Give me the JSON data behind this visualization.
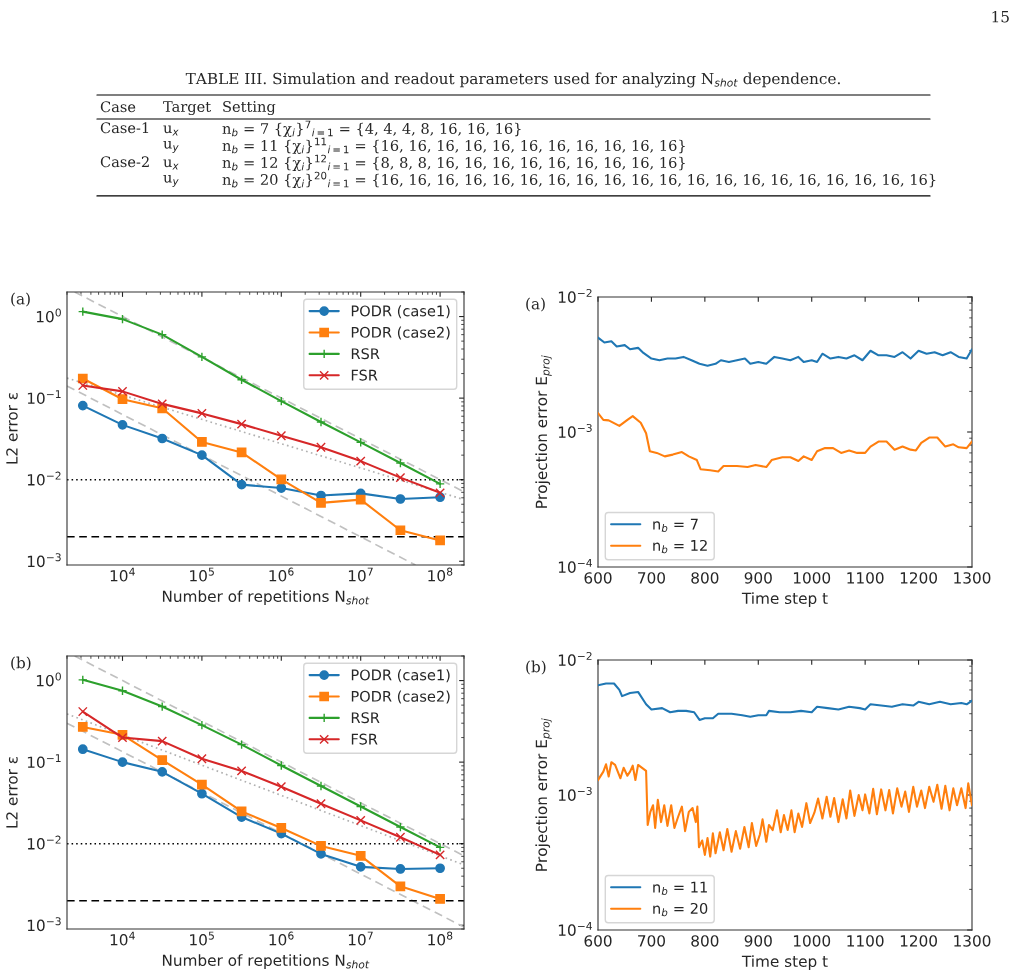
{
  "chart_data": [
    {
      "type": "other",
      "title": "TABLE III. Simulation and readout parameters used for analyzing N$_{shot}$ dependence.",
      "annotations": [
        "Case",
        "Target",
        "Setting",
        "Case-1",
        "u$_{x}$",
        "n$_{b}$ = 7 {χ$_{i}$}$^{7}$$_{i=1}$ = {4, 4, 4, 8, 16, 16, 16}",
        "u$_{y}$",
        "n$_{b}$ = 11 {χ$_{i}$}$^{11}$$_{i=1}$ = {16, 16, 16, 16, 16, 16, 16, 16, 16, 16, 16}",
        "Case-2",
        "u$_{x}$",
        "n$_{b}$ = 12 {χ$_{i}$}$^{12}$$_{i=1}$ = {8, 8, 8, 16, 16, 16, 16, 16, 16, 16, 16, 16}",
        "u$_{y}$",
        "n$_{b}$ = 20 {χ$_{i}$}$^{20}$$_{i=1}$ = {16, 16, 16, 16, 16, 16, 16, 16, 16, 16, 16, 16, 16, 16, 16, 16, 16, 16, 16, 16}",
        "15"
      ]
    },
    {
      "type": "line",
      "annotations": [
        "(a)"
      ],
      "xlabel": "Number of repetitions N$_{shot}$",
      "ylabel": "L2 error ε",
      "log": "xy",
      "legend": "top right",
      "xlim": [
        2000,
        200000000
      ],
      "ylim": [
        0.0009,
        2
      ],
      "xticks": [
        {
          "value": 10000,
          "label": "10$^{4}$"
        },
        {
          "value": 100000,
          "label": "10$^{5}$"
        },
        {
          "value": 1000000,
          "label": "10$^{6}$"
        },
        {
          "value": 10000000,
          "label": "10$^{7}$"
        },
        {
          "value": 100000000,
          "label": "10$^{8}$"
        }
      ],
      "yticks": [
        {
          "value": 0.001,
          "label": "10$^{−3}$"
        },
        {
          "value": 0.01,
          "label": "10$^{−2}$"
        },
        {
          "value": 0.1,
          "label": "10$^{−1}$"
        },
        {
          "value": 1,
          "label": "10$^{0}$"
        }
      ],
      "x": [
        3162,
        10000,
        31623,
        100000,
        316228,
        1000000,
        3162278,
        10000000,
        31622777,
        100000000
      ],
      "ref_lines": [
        {
          "axis": "y",
          "value": 0.01,
          "color": "#000000",
          "line_style": "dotted"
        },
        {
          "axis": "y",
          "value": 0.002,
          "color": "#000000",
          "line_style": "dashed"
        }
      ],
      "series": [
        {
          "name": "PODR (case1)",
          "color": "#1f77b4",
          "marker": "circle",
          "values": [
            0.081,
            0.047,
            0.032,
            0.02,
            0.0087,
            0.0079,
            0.0064,
            0.0068,
            0.0058,
            0.0061
          ]
        },
        {
          "name": "PODR (case2)",
          "color": "#ff7f0e",
          "marker": "square",
          "values": [
            0.174,
            0.097,
            0.075,
            0.029,
            0.0216,
            0.0101,
            0.0052,
            0.0057,
            0.0024,
            0.0018
          ]
        },
        {
          "name": "RSR",
          "color": "#2ca02c",
          "marker": "plus",
          "values": [
            1.15,
            0.93,
            0.6,
            0.32,
            0.168,
            0.092,
            0.051,
            0.0287,
            0.016,
            0.0089
          ]
        },
        {
          "name": "FSR",
          "color": "#d62728",
          "marker": "cross",
          "values": [
            0.143,
            0.121,
            0.085,
            0.065,
            0.048,
            0.0346,
            0.025,
            0.0169,
            0.0106,
            0.0069
          ]
        },
        {
          "color": "#c0c0c0",
          "line_style": "dashed",
          "x": [
            2500,
            200000000
          ],
          "values": [
            2,
            0.0071
          ]
        },
        {
          "color": "#c0c0c0",
          "line_style": "dashed",
          "x": [
            2000,
            49000000
          ],
          "values": [
            0.141,
            0.0009
          ]
        },
        {
          "color": "#b0b0b0",
          "line_style": "dotted",
          "x": [
            2000,
            200000000
          ],
          "values": [
            0.176,
            0.0057
          ]
        }
      ]
    },
    {
      "type": "line",
      "annotations": [
        "(a)"
      ],
      "xlabel": "Time step t",
      "ylabel": "Projection error E$_{proj}$",
      "log": "y",
      "legend": "bottom left",
      "xlim": [
        600,
        1300
      ],
      "ylim": [
        0.0001,
        0.01
      ],
      "xticks": [
        600,
        700,
        800,
        900,
        1000,
        1100,
        1200,
        1300
      ],
      "yticks": [
        {
          "value": 0.0001,
          "label": "10$^{−4}$"
        },
        {
          "value": 0.001,
          "label": "10$^{−3}$"
        },
        {
          "value": 0.01,
          "label": "10$^{−2}$"
        }
      ],
      "series": [
        {
          "name": "n$_{b}$ = 7",
          "color": "#1f77b4",
          "x": [
            600,
            612,
            625,
            635,
            650,
            660,
            675,
            685,
            700,
            715,
            730,
            745,
            760,
            775,
            790,
            805,
            820,
            830,
            845,
            860,
            875,
            885,
            900,
            915,
            930,
            945,
            960,
            975,
            985,
            1000,
            1010,
            1020,
            1035,
            1050,
            1065,
            1080,
            1095,
            1110,
            1125,
            1140,
            1155,
            1170,
            1185,
            1200,
            1215,
            1230,
            1245,
            1260,
            1275,
            1290,
            1300
          ],
          "values": [
            0.005,
            0.0046,
            0.0047,
            0.0043,
            0.0044,
            0.0041,
            0.0042,
            0.00385,
            0.0035,
            0.0034,
            0.0035,
            0.0035,
            0.0036,
            0.0034,
            0.0032,
            0.0031,
            0.0032,
            0.0034,
            0.0033,
            0.0034,
            0.0035,
            0.0032,
            0.0033,
            0.0032,
            0.0036,
            0.0035,
            0.0034,
            0.0036,
            0.0033,
            0.0034,
            0.0033,
            0.0038,
            0.0035,
            0.0036,
            0.0035,
            0.0037,
            0.0034,
            0.004,
            0.0037,
            0.0037,
            0.0036,
            0.0039,
            0.0035,
            0.004,
            0.0038,
            0.0039,
            0.0037,
            0.0039,
            0.0036,
            0.0035,
            0.0041
          ]
        },
        {
          "name": "n$_{b}$ = 12",
          "color": "#ff7f0e",
          "x": [
            600,
            610,
            620,
            640,
            655,
            665,
            680,
            690,
            697,
            710,
            725,
            740,
            757,
            770,
            785,
            792,
            810,
            825,
            835,
            860,
            880,
            895,
            915,
            925,
            945,
            960,
            975,
            985,
            1000,
            1010,
            1025,
            1040,
            1055,
            1070,
            1085,
            1100,
            1110,
            1125,
            1140,
            1155,
            1170,
            1185,
            1195,
            1205,
            1220,
            1235,
            1250,
            1265,
            1275,
            1290,
            1300
          ],
          "values": [
            0.00138,
            0.00123,
            0.00122,
            0.00111,
            0.00123,
            0.00131,
            0.00117,
            0.00098,
            0.00072,
            0.0007,
            0.00066,
            0.00068,
            0.00071,
            0.00066,
            0.00062,
            0.00053,
            0.00052,
            0.00051,
            0.00056,
            0.00056,
            0.00055,
            0.00057,
            0.00055,
            0.00062,
            0.00065,
            0.00065,
            0.00061,
            0.00066,
            0.00062,
            0.00072,
            0.00076,
            0.00076,
            0.0007,
            0.00073,
            0.0007,
            0.0007,
            0.00078,
            0.00085,
            0.00085,
            0.00074,
            0.00078,
            0.00074,
            0.00073,
            0.00083,
            0.00091,
            0.00091,
            0.00078,
            0.00081,
            0.00077,
            0.00076,
            0.00085
          ]
        }
      ]
    },
    {
      "type": "line",
      "annotations": [
        "(b)"
      ],
      "xlabel": "Number of repetitions N$_{shot}$",
      "ylabel": "L2 error ε",
      "log": "xy",
      "legend": "top right",
      "xlim": [
        2000,
        200000000
      ],
      "ylim": [
        0.0009,
        2
      ],
      "xticks": [
        {
          "value": 10000,
          "label": "10$^{4}$"
        },
        {
          "value": 100000,
          "label": "10$^{5}$"
        },
        {
          "value": 1000000,
          "label": "10$^{6}$"
        },
        {
          "value": 10000000,
          "label": "10$^{7}$"
        },
        {
          "value": 100000000,
          "label": "10$^{8}$"
        }
      ],
      "yticks": [
        {
          "value": 0.001,
          "label": "10$^{−3}$"
        },
        {
          "value": 0.01,
          "label": "10$^{−2}$"
        },
        {
          "value": 0.1,
          "label": "10$^{−1}$"
        },
        {
          "value": 1,
          "label": "10$^{0}$"
        }
      ],
      "x": [
        3162,
        10000,
        31623,
        100000,
        316228,
        1000000,
        3162278,
        10000000,
        31622777,
        100000000
      ],
      "ref_lines": [
        {
          "axis": "y",
          "value": 0.01,
          "color": "#000000",
          "line_style": "dotted"
        },
        {
          "axis": "y",
          "value": 0.002,
          "color": "#000000",
          "line_style": "dashed"
        }
      ],
      "series": [
        {
          "name": "PODR (case1)",
          "color": "#1f77b4",
          "marker": "circle",
          "values": [
            0.144,
            0.1,
            0.076,
            0.041,
            0.0212,
            0.0133,
            0.0075,
            0.0052,
            0.0049,
            0.005
          ]
        },
        {
          "name": "PODR (case2)",
          "color": "#ff7f0e",
          "marker": "square",
          "values": [
            0.27,
            0.216,
            0.106,
            0.053,
            0.0249,
            0.0156,
            0.0094,
            0.0071,
            0.003,
            0.0021
          ]
        },
        {
          "name": "RSR",
          "color": "#2ca02c",
          "marker": "plus",
          "values": [
            1.02,
            0.75,
            0.48,
            0.284,
            0.164,
            0.091,
            0.051,
            0.0286,
            0.016,
            0.009
          ]
        },
        {
          "name": "FSR",
          "color": "#d62728",
          "marker": "cross",
          "values": [
            0.417,
            0.2,
            0.181,
            0.11,
            0.078,
            0.05,
            0.0309,
            0.0193,
            0.012,
            0.0073
          ]
        },
        {
          "color": "#c0c0c0",
          "line_style": "dashed",
          "x": [
            2500,
            200000000
          ],
          "values": [
            2,
            0.0071
          ]
        },
        {
          "color": "#c0c0c0",
          "line_style": "dashed",
          "x": [
            2000,
            200000000
          ],
          "values": [
            0.3,
            0.00095
          ]
        },
        {
          "color": "#b0b0b0",
          "line_style": "dotted",
          "x": [
            2000,
            200000000
          ],
          "values": [
            0.39,
            0.0055
          ]
        }
      ]
    },
    {
      "type": "line",
      "annotations": [
        "(b)"
      ],
      "xlabel": "Time step t",
      "ylabel": "Projection error E$_{proj}$",
      "log": "y",
      "legend": "bottom left",
      "xlim": [
        600,
        1300
      ],
      "ylim": [
        0.0001,
        0.01
      ],
      "xticks": [
        600,
        700,
        800,
        900,
        1000,
        1100,
        1200,
        1300
      ],
      "yticks": [
        {
          "value": 0.0001,
          "label": "10$^{−4}$"
        },
        {
          "value": 0.001,
          "label": "10$^{−3}$"
        },
        {
          "value": 0.01,
          "label": "10$^{−2}$"
        }
      ],
      "series": [
        {
          "name": "n$_{b}$ = 11",
          "color": "#1f77b4",
          "x": [
            600,
            615,
            630,
            640,
            645,
            660,
            675,
            690,
            700,
            720,
            735,
            750,
            765,
            780,
            790,
            800,
            815,
            825,
            850,
            870,
            885,
            900,
            915,
            920,
            940,
            960,
            980,
            1000,
            1010,
            1030,
            1050,
            1070,
            1090,
            1100,
            1110,
            1130,
            1150,
            1170,
            1190,
            1200,
            1220,
            1240,
            1260,
            1280,
            1290,
            1300
          ],
          "values": [
            0.0065,
            0.0067,
            0.0067,
            0.006,
            0.0054,
            0.0057,
            0.0058,
            0.0047,
            0.0043,
            0.0044,
            0.0041,
            0.0042,
            0.0042,
            0.0041,
            0.0036,
            0.0037,
            0.0037,
            0.004,
            0.004,
            0.0039,
            0.0038,
            0.0039,
            0.0039,
            0.0042,
            0.0041,
            0.0041,
            0.0042,
            0.0041,
            0.0045,
            0.0044,
            0.0043,
            0.0045,
            0.0044,
            0.0043,
            0.0047,
            0.0046,
            0.0045,
            0.0047,
            0.0046,
            0.0049,
            0.0047,
            0.0049,
            0.0047,
            0.0048,
            0.0047,
            0.005
          ]
        },
        {
          "name": "n$_{b}$ = 20",
          "color": "#ff7f0e",
          "x": [
            600,
            610,
            615,
            620,
            625,
            632,
            637,
            642,
            648,
            655,
            660,
            665,
            670,
            675,
            690,
            693,
            698,
            703,
            707,
            712,
            718,
            724,
            730,
            737,
            743,
            750,
            757,
            763,
            770,
            777,
            783,
            786,
            789,
            795,
            800,
            805,
            810,
            815,
            820,
            828,
            835,
            842,
            850,
            858,
            866,
            874,
            882,
            888,
            896,
            903,
            908,
            915,
            920,
            927,
            935,
            942,
            948,
            955,
            962,
            968,
            975,
            982,
            990,
            997,
            1005,
            1012,
            1020,
            1028,
            1035,
            1042,
            1050,
            1058,
            1065,
            1072,
            1080,
            1088,
            1095,
            1100,
            1108,
            1115,
            1122,
            1130,
            1138,
            1145,
            1152,
            1160,
            1168,
            1175,
            1182,
            1190,
            1197,
            1205,
            1212,
            1220,
            1228,
            1235,
            1243,
            1250,
            1258,
            1265,
            1272,
            1280,
            1288,
            1293,
            1300
          ],
          "values": [
            0.00129,
            0.00149,
            0.00169,
            0.00137,
            0.00175,
            0.00167,
            0.00149,
            0.00133,
            0.00159,
            0.00139,
            0.00149,
            0.00165,
            0.00129,
            0.00167,
            0.00151,
            0.0006,
            0.00075,
            0.00084,
            0.00057,
            0.00092,
            0.00063,
            0.00084,
            0.00059,
            0.00084,
            0.00057,
            0.00069,
            0.00082,
            0.00054,
            0.00075,
            0.0008,
            0.00063,
            0.00082,
            0.00041,
            0.00046,
            0.00036,
            0.00048,
            0.00035,
            0.00052,
            0.00037,
            0.00053,
            0.00039,
            0.00056,
            0.00038,
            0.00054,
            0.0004,
            0.00058,
            0.00041,
            0.00062,
            0.00042,
            0.00051,
            0.00066,
            0.00045,
            0.0006,
            0.00055,
            0.00077,
            0.00053,
            0.00071,
            0.00055,
            0.00077,
            0.00053,
            0.00073,
            0.00058,
            0.00087,
            0.00062,
            0.00074,
            0.00094,
            0.00067,
            0.00097,
            0.00069,
            0.00095,
            0.00063,
            0.00093,
            0.00067,
            0.00108,
            0.0007,
            0.001,
            0.00077,
            0.00101,
            0.00073,
            0.00111,
            0.00072,
            0.0011,
            0.00077,
            0.00109,
            0.00073,
            0.00112,
            0.00082,
            0.00106,
            0.00075,
            0.00115,
            0.00082,
            0.00108,
            0.0008,
            0.00115,
            0.00089,
            0.00119,
            0.00079,
            0.00117,
            0.00077,
            0.00112,
            0.00084,
            0.00112,
            0.0008,
            0.00122,
            0.00084
          ]
        }
      ]
    }
  ]
}
